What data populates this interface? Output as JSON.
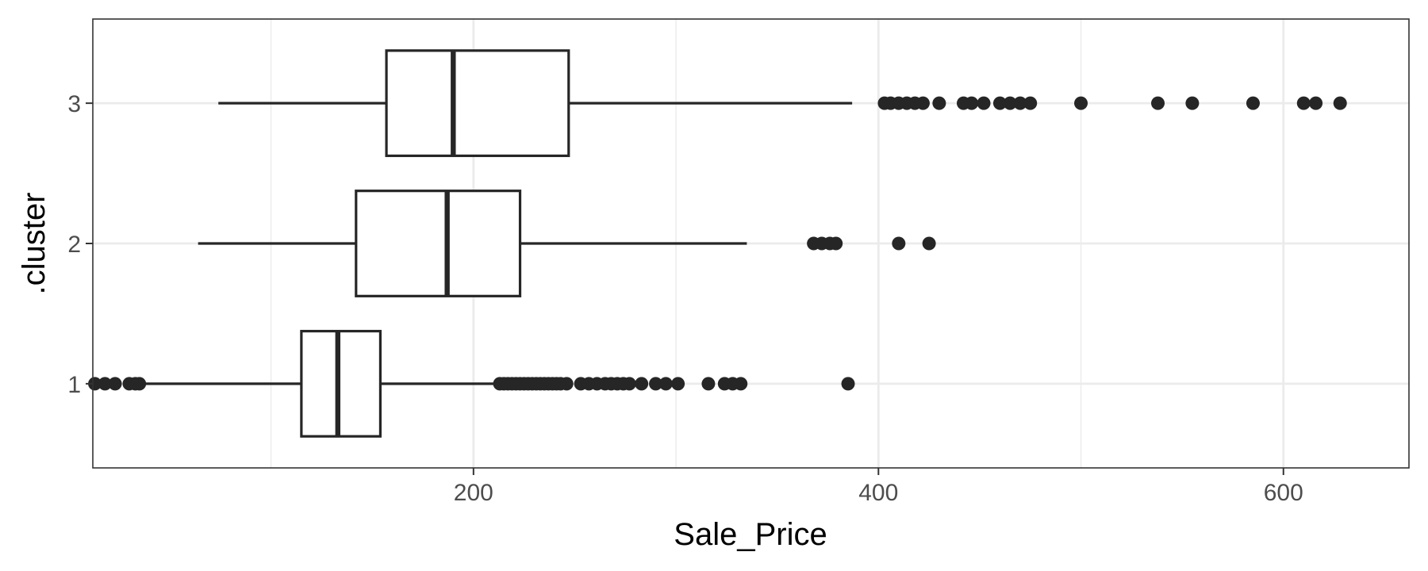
{
  "chart_data": {
    "type": "boxplot",
    "orientation": "horizontal",
    "xlabel": "Sale_Price",
    "ylabel": ".cluster",
    "xlim": [
      12,
      662
    ],
    "x_ticks": [
      200,
      400,
      600
    ],
    "x_tick_labels": [
      "200",
      "400",
      "600"
    ],
    "x_minor_ticks": [
      100,
      300,
      500
    ],
    "categories": [
      "1",
      "2",
      "3"
    ],
    "grid": true,
    "boxes": [
      {
        "category": "1",
        "whisker_low": 35,
        "q1": 115,
        "median": 133,
        "q3": 154,
        "whisker_high": 213,
        "outliers": [
          13,
          18,
          23,
          30,
          33,
          35,
          213,
          215,
          217,
          219,
          221,
          223,
          225,
          227,
          229,
          231,
          233,
          235,
          237,
          239,
          241,
          243,
          246,
          253,
          257,
          261,
          265,
          268,
          271,
          274,
          277,
          283,
          290,
          295,
          301,
          316,
          324,
          328,
          332,
          385
        ]
      },
      {
        "category": "2",
        "whisker_low": 64,
        "q1": 142,
        "median": 187,
        "q3": 223,
        "whisker_high": 335,
        "outliers": [
          368,
          372,
          376,
          379,
          410,
          425
        ]
      },
      {
        "category": "3",
        "whisker_low": 74,
        "q1": 157,
        "median": 190,
        "q3": 247,
        "whisker_high": 387,
        "outliers": [
          403,
          406,
          410,
          414,
          418,
          422,
          430,
          442,
          446,
          452,
          460,
          465,
          470,
          475,
          500,
          538,
          555,
          585,
          610,
          616,
          628
        ]
      }
    ]
  }
}
